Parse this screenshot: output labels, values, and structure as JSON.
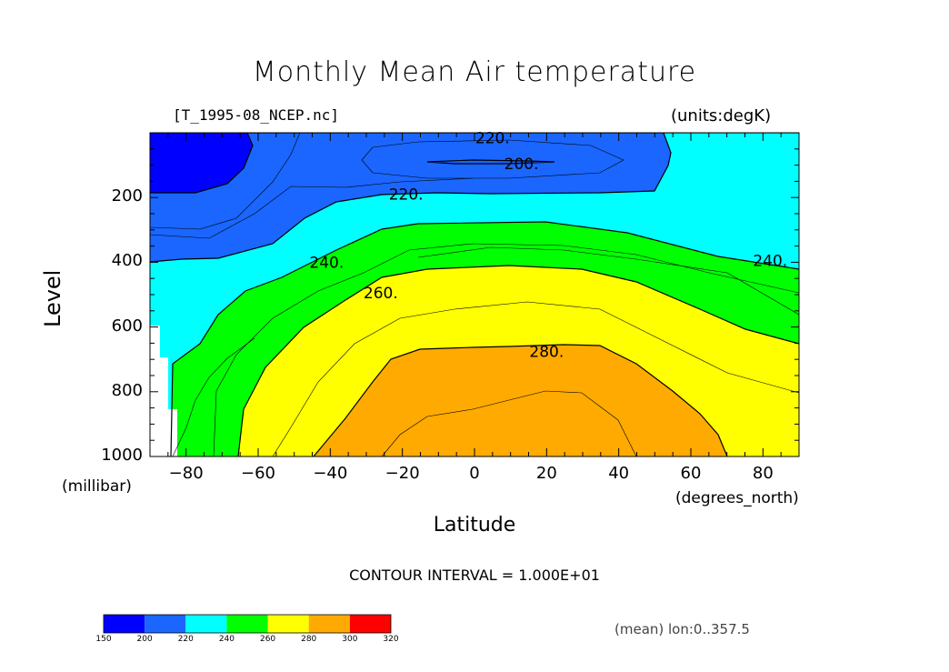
{
  "header": {
    "title": "Monthly Mean Air temperature",
    "file_label": "[T_1995-08_NCEP.nc]",
    "units_label": "(units:degK)"
  },
  "axes": {
    "xlabel": "Latitude",
    "ylabel": "Level",
    "x_units": "(degrees_north)",
    "y_units": "(millibar)",
    "x_ticks": [
      "-80",
      "-60",
      "-40",
      "-20",
      "0",
      "20",
      "40",
      "60",
      "80"
    ],
    "y_ticks": [
      "200",
      "400",
      "600",
      "800",
      "1000"
    ]
  },
  "notes": {
    "contour_interval": "CONTOUR INTERVAL = 1.000E+01",
    "mean_note": "(mean) lon:0..357.5"
  },
  "colorbar": {
    "ticks": [
      "150",
      "200",
      "220",
      "240",
      "260",
      "280",
      "300",
      "320"
    ],
    "colors": [
      "#0000ff",
      "#1a66ff",
      "#00ffff",
      "#00ff00",
      "#ffff00",
      "#ffaa00",
      "#ff0000"
    ]
  },
  "chart_data": {
    "type": "heatmap",
    "title": "Monthly Mean Air temperature",
    "xlabel": "Latitude",
    "ylabel": "Level",
    "x_range": [
      -90,
      90
    ],
    "y_range": [
      1000,
      0
    ],
    "units": "degK",
    "contour_interval": 10,
    "filled_levels": [
      150,
      200,
      220,
      240,
      260,
      280,
      300,
      320
    ],
    "contour_labels": [
      {
        "value": "220.",
        "lat": 5,
        "lev": 15
      },
      {
        "value": "200.",
        "lat": 13,
        "lev": 95
      },
      {
        "value": "220.",
        "lat": -19,
        "lev": 190
      },
      {
        "value": "240.",
        "lat": -41,
        "lev": 400
      },
      {
        "value": "260.",
        "lat": -26,
        "lev": 495
      },
      {
        "value": "280.",
        "lat": 20,
        "lev": 675
      },
      {
        "value": "240.",
        "lat": 82,
        "lev": 395
      }
    ],
    "fill_colors": {
      "150-200": "#0000ff",
      "200-220": "#1a66ff",
      "220-240": "#00ffff",
      "240-260": "#00ff00",
      "260-280": "#ffff00",
      "280-300": "#ffaa00",
      "300-320": "#ff0000"
    }
  }
}
